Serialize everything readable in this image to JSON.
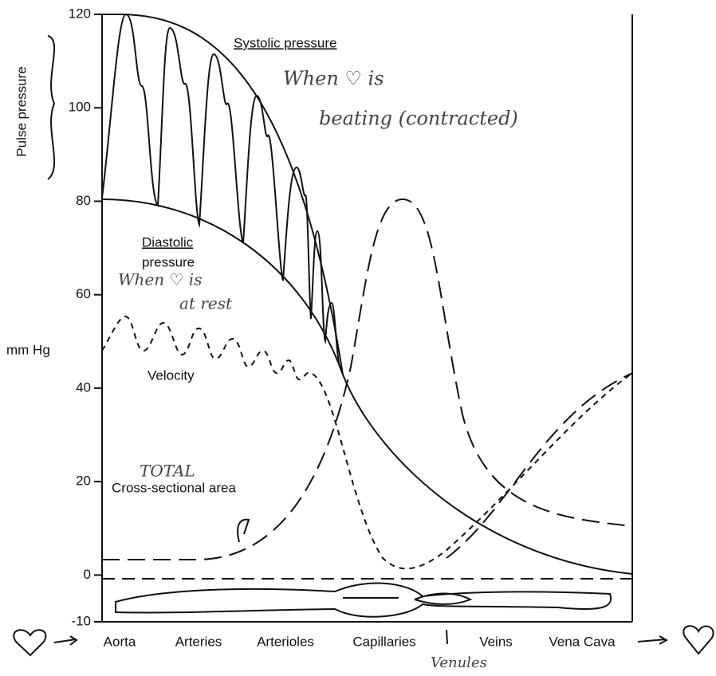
{
  "y_axis": {
    "title": "mm Hg",
    "bracket_label": "Pulse pressure",
    "ticks": [
      120,
      100,
      80,
      60,
      40,
      20,
      0,
      -10
    ],
    "lim": [
      -10,
      120
    ]
  },
  "labels": {
    "systolic": "Systolic pressure",
    "systolic_note_1": "When ♡ is",
    "systolic_note_2": "beating (contracted)",
    "diastolic_1": "Diastolic",
    "diastolic_2": "pressure",
    "diastolic_note_1": "When ♡ is",
    "diastolic_note_2": "at rest",
    "velocity": "Velocity",
    "total": "TOTAL",
    "cross_section": "Cross-sectional area"
  },
  "categories": [
    "Aorta",
    "Arteries",
    "Arterioles",
    "Capillaries",
    "Veins",
    "Vena Cava"
  ],
  "venules": "Venules"
}
